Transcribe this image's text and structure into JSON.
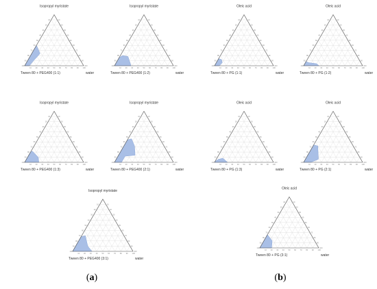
{
  "panel_labels": [
    {
      "open": "(",
      "letter": "a",
      "close": ")"
    },
    {
      "open": "(",
      "letter": "b",
      "close": ")"
    }
  ],
  "colors": {
    "region_fill": "#a9bfe6",
    "region_stroke": "#8aa6d8",
    "triangle": "#4d4d4d",
    "grid": "#dcdcdc"
  },
  "tick_values": [
    "10",
    "20",
    "30",
    "40",
    "50",
    "60",
    "70",
    "80",
    "90",
    "100"
  ],
  "chart_data": [
    {
      "type": "ternary",
      "title": "Isopropyl myristate",
      "left_label": "Tween 80 + PEG400 (1:1)",
      "right_label": "water",
      "region": [
        [
          100,
          0
        ],
        [
          92,
          0
        ],
        [
          80,
          10
        ],
        [
          72,
          16
        ],
        [
          62,
          24
        ],
        [
          60,
          40
        ],
        [
          70,
          30
        ],
        [
          80,
          20
        ],
        [
          90,
          10
        ],
        [
          100,
          0
        ]
      ]
    },
    {
      "type": "ternary",
      "title": "Isopropyl myristate",
      "left_label": "Tween 80 + PEG400 (1:2)",
      "right_label": "water",
      "region": [
        [
          100,
          0
        ],
        [
          72,
          0
        ],
        [
          68,
          18
        ],
        [
          76,
          20
        ],
        [
          84,
          16
        ],
        [
          90,
          10
        ],
        [
          100,
          0
        ]
      ]
    },
    {
      "type": "ternary",
      "title": "Oleic acid",
      "left_label": "Tween 80 + PG (1:1)",
      "right_label": "water",
      "region": [
        [
          100,
          0
        ],
        [
          92,
          0
        ],
        [
          84,
          6
        ],
        [
          82,
          12
        ],
        [
          86,
          14
        ],
        [
          90,
          10
        ],
        [
          100,
          0
        ]
      ]
    },
    {
      "type": "ternary",
      "title": "Oleic acid",
      "left_label": "Tween 80 + PG (1:2)",
      "right_label": "water",
      "region": [
        [
          100,
          0
        ],
        [
          74,
          0
        ],
        [
          76,
          4
        ],
        [
          88,
          6
        ],
        [
          92,
          8
        ],
        [
          100,
          0
        ]
      ]
    },
    {
      "type": "ternary",
      "title": "Isopropyl myristate",
      "left_label": "Tween 80 + PEG400 (1:3)",
      "right_label": "water",
      "region": [
        [
          100,
          0
        ],
        [
          76,
          0
        ],
        [
          72,
          10
        ],
        [
          76,
          22
        ],
        [
          80,
          20
        ],
        [
          90,
          10
        ],
        [
          100,
          0
        ]
      ]
    },
    {
      "type": "ternary",
      "title": "Isopropyl myristate",
      "left_label": "Tween 80 + PEG400 (2:1)",
      "right_label": "water",
      "region": [
        [
          100,
          0
        ],
        [
          88,
          0
        ],
        [
          76,
          12
        ],
        [
          58,
          14
        ],
        [
          50,
          32
        ],
        [
          48,
          46
        ],
        [
          56,
          44
        ],
        [
          70,
          30
        ],
        [
          80,
          20
        ],
        [
          90,
          10
        ],
        [
          100,
          0
        ]
      ]
    },
    {
      "type": "ternary",
      "title": "Oleic acid",
      "left_label": "Tween 80 + PG (1:3)",
      "right_label": "water",
      "region": [
        [
          100,
          0
        ],
        [
          78,
          0
        ],
        [
          82,
          8
        ],
        [
          90,
          6
        ],
        [
          96,
          3
        ],
        [
          100,
          0
        ]
      ]
    },
    {
      "type": "ternary",
      "title": "Oleic acid",
      "left_label": "Tween 80 + PG (2:1)",
      "right_label": "water",
      "region": [
        [
          100,
          0
        ],
        [
          88,
          0
        ],
        [
          72,
          6
        ],
        [
          60,
          32
        ],
        [
          66,
          34
        ],
        [
          80,
          20
        ],
        [
          90,
          10
        ],
        [
          100,
          0
        ]
      ]
    },
    {
      "type": "ternary",
      "title": "Isopropyl myristate",
      "left_label": "Tween 80 + PEG400 (3:1)",
      "right_label": "water",
      "region": [
        [
          100,
          0
        ],
        [
          68,
          0
        ],
        [
          70,
          10
        ],
        [
          64,
          30
        ],
        [
          72,
          28
        ],
        [
          80,
          20
        ],
        [
          90,
          10
        ],
        [
          100,
          0
        ]
      ]
    },
    {
      "type": "ternary",
      "title": "Oleic acid",
      "left_label": "Tween 80 + PG (3:1)",
      "right_label": "water",
      "region": [
        [
          100,
          0
        ],
        [
          80,
          0
        ],
        [
          72,
          14
        ],
        [
          74,
          26
        ],
        [
          76,
          24
        ],
        [
          90,
          10
        ],
        [
          100,
          0
        ]
      ]
    }
  ]
}
